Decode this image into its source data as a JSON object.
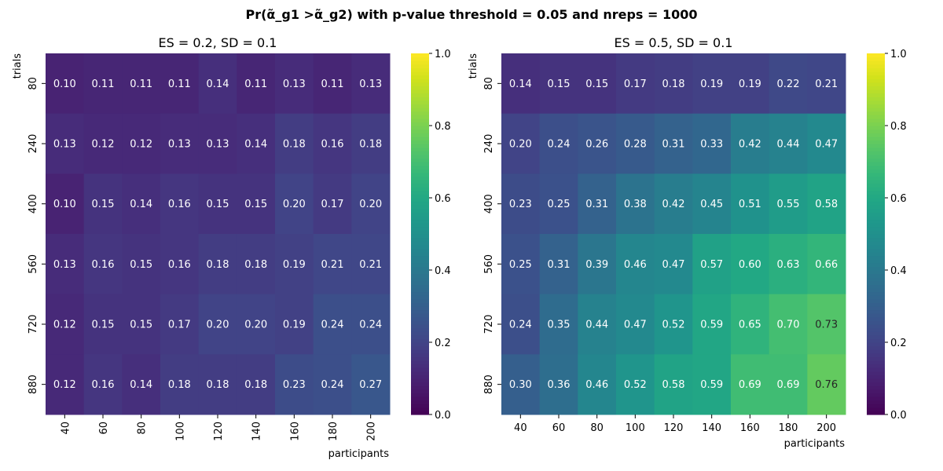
{
  "suptitle": "Pr(α̃_g1 >α̃_g2) with p-value threshold = 0.05 and nreps = 1000",
  "chart_data": [
    {
      "type": "heatmap",
      "title": "ES = 0.2, SD = 0.1",
      "xlabel": "participants",
      "ylabel": "trials",
      "x": [
        40,
        60,
        80,
        100,
        120,
        140,
        160,
        180,
        200
      ],
      "y": [
        80,
        240,
        400,
        560,
        720,
        880
      ],
      "values": [
        [
          0.1,
          0.11,
          0.11,
          0.11,
          0.14,
          0.11,
          0.13,
          0.11,
          0.13
        ],
        [
          0.13,
          0.12,
          0.12,
          0.13,
          0.13,
          0.14,
          0.18,
          0.16,
          0.18
        ],
        [
          0.1,
          0.15,
          0.14,
          0.16,
          0.15,
          0.15,
          0.2,
          0.17,
          0.2
        ],
        [
          0.13,
          0.16,
          0.15,
          0.16,
          0.18,
          0.18,
          0.19,
          0.21,
          0.21
        ],
        [
          0.12,
          0.15,
          0.15,
          0.17,
          0.2,
          0.2,
          0.19,
          0.24,
          0.24
        ],
        [
          0.12,
          0.16,
          0.14,
          0.18,
          0.18,
          0.18,
          0.23,
          0.24,
          0.27
        ]
      ],
      "vmin": 0,
      "vmax": 1,
      "colormap": "viridis",
      "colorbar_ticks": [
        "0.0",
        "0.2",
        "0.4",
        "0.6",
        "0.8",
        "1.0"
      ],
      "xtick_rotation": "vertical"
    },
    {
      "type": "heatmap",
      "title": "ES = 0.5, SD = 0.1",
      "xlabel": "participants",
      "ylabel": "trials",
      "x": [
        40,
        60,
        80,
        100,
        120,
        140,
        160,
        180,
        200
      ],
      "y": [
        80,
        240,
        400,
        560,
        720,
        880
      ],
      "values": [
        [
          0.14,
          0.15,
          0.15,
          0.17,
          0.18,
          0.19,
          0.19,
          0.22,
          0.21
        ],
        [
          0.2,
          0.24,
          0.26,
          0.28,
          0.31,
          0.33,
          0.42,
          0.44,
          0.47
        ],
        [
          0.23,
          0.25,
          0.31,
          0.38,
          0.42,
          0.45,
          0.51,
          0.55,
          0.58
        ],
        [
          0.25,
          0.31,
          0.39,
          0.46,
          0.47,
          0.57,
          0.6,
          0.63,
          0.66
        ],
        [
          0.24,
          0.35,
          0.44,
          0.47,
          0.52,
          0.59,
          0.65,
          0.7,
          0.73
        ],
        [
          0.3,
          0.36,
          0.46,
          0.52,
          0.58,
          0.59,
          0.69,
          0.69,
          0.76
        ]
      ],
      "vmin": 0,
      "vmax": 1,
      "colormap": "viridis",
      "colorbar_ticks": [
        "0.0",
        "0.2",
        "0.4",
        "0.6",
        "0.8",
        "1.0"
      ],
      "xtick_rotation": "horizontal"
    }
  ]
}
